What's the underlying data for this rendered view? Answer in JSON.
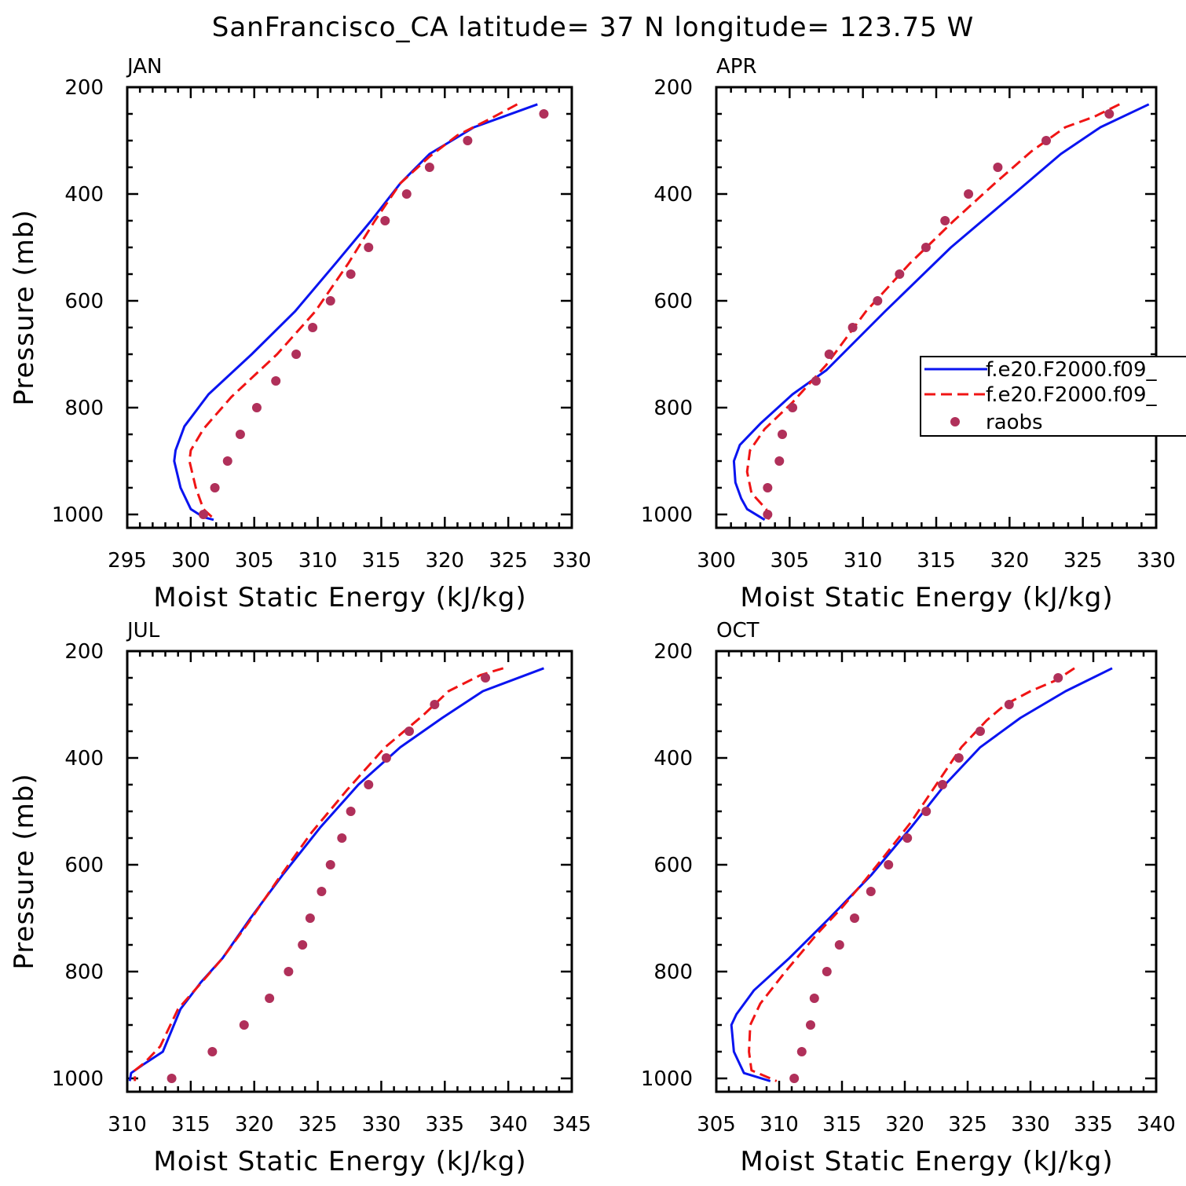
{
  "suptitle": "SanFrancisco_CA  latitude= 37 N longitude= 123.75 W",
  "colors": {
    "model_a": "#0a14f0",
    "model_b": "#f01414",
    "raobs": "#b0305a"
  },
  "legend": {
    "entries": [
      {
        "label": "f.e20.F2000.f09_",
        "style": "solid",
        "color": "#0a14f0"
      },
      {
        "label": "f.e20.F2000.f09_",
        "style": "dashed",
        "color": "#f01414"
      },
      {
        "label": "raobs",
        "style": "marker",
        "color": "#b0305a"
      }
    ],
    "panel": 1
  },
  "chart_data": [
    {
      "type": "line",
      "title": "JAN",
      "xlabel": "Moist Static Energy (kJ/kg)",
      "ylabel": "Pressure (mb)",
      "xlim": [
        295,
        330
      ],
      "ylim": [
        1025,
        200
      ],
      "xticks": [
        295,
        300,
        305,
        310,
        315,
        320,
        325,
        330
      ],
      "yticks": [
        200,
        400,
        600,
        800,
        1000
      ],
      "series": [
        {
          "style": "solid",
          "color": "#0a14f0",
          "x": [
            327.3,
            322.3,
            318.8,
            316.5,
            314.2,
            311.4,
            308.2,
            304.8,
            301.4,
            299.5,
            298.8,
            298.7,
            299.2,
            300.0,
            301.0,
            301.8
          ],
          "y": [
            232,
            275,
            325,
            380,
            450,
            530,
            620,
            700,
            775,
            835,
            880,
            900,
            950,
            990,
            1005,
            1010
          ]
        },
        {
          "style": "dashed",
          "color": "#f01414",
          "x": [
            325.7,
            323.5,
            321.0,
            318.8,
            316.5,
            314.5,
            312.4,
            309.8,
            306.8,
            303.2,
            301.0,
            300.0,
            299.9,
            300.4,
            301.0,
            301.9
          ],
          "y": [
            232,
            260,
            290,
            330,
            380,
            450,
            530,
            620,
            700,
            780,
            840,
            880,
            900,
            950,
            990,
            1010
          ]
        },
        {
          "style": "marker",
          "color": "#b0305a",
          "x": [
            327.8,
            321.8,
            318.8,
            317.0,
            315.3,
            314.0,
            312.6,
            311.0,
            309.6,
            308.3,
            306.7,
            305.2,
            303.9,
            302.9,
            301.9,
            301.0
          ],
          "y": [
            250,
            300,
            350,
            400,
            450,
            500,
            550,
            600,
            650,
            700,
            750,
            800,
            850,
            900,
            950,
            1000
          ]
        }
      ]
    },
    {
      "type": "line",
      "title": "APR",
      "xlabel": "Moist Static Energy (kJ/kg)",
      "ylabel": "",
      "xlim": [
        300,
        330
      ],
      "ylim": [
        1025,
        200
      ],
      "xticks": [
        300,
        305,
        310,
        315,
        320,
        325,
        330
      ],
      "yticks": [
        200,
        400,
        600,
        800,
        1000
      ],
      "series": [
        {
          "style": "solid",
          "color": "#0a14f0",
          "x": [
            329.5,
            326.2,
            323.5,
            320.3,
            316.0,
            311.5,
            307.5,
            305.2,
            303.0,
            301.6,
            301.2,
            301.3,
            301.7,
            302.1,
            303.3
          ],
          "y": [
            232,
            275,
            325,
            400,
            500,
            620,
            730,
            775,
            830,
            870,
            900,
            940,
            970,
            990,
            1010
          ]
        },
        {
          "style": "dashed",
          "color": "#f01414",
          "x": [
            327.5,
            325.8,
            323.8,
            321.5,
            319.0,
            316.2,
            313.2,
            310.2,
            307.5,
            305.2,
            303.3,
            302.3,
            302.1,
            302.4,
            303.4,
            303.6
          ],
          "y": [
            232,
            255,
            275,
            320,
            380,
            450,
            530,
            620,
            720,
            790,
            840,
            880,
            920,
            960,
            990,
            1010
          ]
        },
        {
          "style": "marker",
          "color": "#b0305a",
          "x": [
            326.8,
            322.5,
            319.2,
            317.2,
            315.6,
            314.3,
            312.5,
            311.0,
            309.3,
            307.7,
            306.8,
            305.2,
            304.5,
            304.3,
            303.5,
            303.5
          ],
          "y": [
            250,
            300,
            350,
            400,
            450,
            500,
            550,
            600,
            650,
            700,
            750,
            800,
            850,
            900,
            950,
            1000
          ]
        }
      ]
    },
    {
      "type": "line",
      "title": "JUL",
      "xlabel": "Moist Static Energy (kJ/kg)",
      "ylabel": "Pressure (mb)",
      "xlim": [
        310,
        345
      ],
      "ylim": [
        1025,
        200
      ],
      "xticks": [
        310,
        315,
        320,
        325,
        330,
        335,
        340,
        345
      ],
      "yticks": [
        200,
        400,
        600,
        800,
        1000
      ],
      "series": [
        {
          "style": "solid",
          "color": "#0a14f0",
          "x": [
            342.8,
            338.0,
            334.8,
            331.5,
            328.2,
            325.2,
            322.2,
            319.7,
            317.5,
            315.8,
            314.2,
            312.8,
            311.2,
            310.3,
            310.2
          ],
          "y": [
            232,
            275,
            325,
            380,
            450,
            530,
            620,
            700,
            775,
            820,
            870,
            950,
            975,
            990,
            1005
          ]
        },
        {
          "style": "dashed",
          "color": "#f01414",
          "x": [
            339.6,
            337.8,
            335.3,
            333.3,
            330.3,
            327.3,
            324.5,
            321.8,
            319.5,
            317.5,
            315.5,
            314.0,
            312.6,
            311.4,
            310.6,
            310.6
          ],
          "y": [
            232,
            245,
            275,
            320,
            380,
            460,
            540,
            630,
            710,
            775,
            830,
            870,
            940,
            970,
            985,
            1005
          ]
        },
        {
          "style": "marker",
          "color": "#b0305a",
          "x": [
            338.2,
            334.2,
            332.2,
            330.4,
            329.0,
            327.6,
            326.9,
            326.0,
            325.3,
            324.4,
            323.8,
            322.7,
            321.2,
            319.2,
            316.7,
            313.5
          ],
          "y": [
            250,
            300,
            350,
            400,
            450,
            500,
            550,
            600,
            650,
            700,
            750,
            800,
            850,
            900,
            950,
            1000
          ]
        }
      ]
    },
    {
      "type": "line",
      "title": "OCT",
      "xlabel": "Moist Static Energy (kJ/kg)",
      "ylabel": "",
      "xlim": [
        305,
        340
      ],
      "ylim": [
        1025,
        200
      ],
      "xticks": [
        305,
        310,
        315,
        320,
        325,
        330,
        335,
        340
      ],
      "yticks": [
        200,
        400,
        600,
        800,
        1000
      ],
      "series": [
        {
          "style": "solid",
          "color": "#0a14f0",
          "x": [
            336.5,
            332.8,
            329.2,
            326.0,
            323.2,
            320.5,
            317.3,
            314.0,
            310.8,
            308.0,
            306.6,
            306.2,
            306.4,
            306.8,
            307.2,
            309.3
          ],
          "y": [
            232,
            275,
            325,
            380,
            450,
            530,
            620,
            700,
            775,
            835,
            880,
            900,
            950,
            970,
            990,
            1005
          ]
        },
        {
          "style": "dashed",
          "color": "#f01414",
          "x": [
            333.5,
            332.0,
            330.0,
            328.0,
            326.5,
            324.5,
            322.5,
            320.5,
            318.5,
            316.8,
            315.0,
            313.0,
            310.5,
            308.5,
            307.7,
            307.6,
            307.8,
            309.8
          ],
          "y": [
            232,
            255,
            275,
            300,
            330,
            380,
            450,
            520,
            580,
            630,
            680,
            730,
            800,
            860,
            900,
            950,
            985,
            1005
          ]
        },
        {
          "style": "marker",
          "color": "#b0305a",
          "x": [
            332.2,
            328.3,
            326.0,
            324.3,
            323.0,
            321.7,
            320.2,
            318.7,
            317.3,
            316.0,
            314.8,
            313.8,
            312.8,
            312.5,
            311.8,
            311.2
          ],
          "y": [
            250,
            300,
            350,
            400,
            450,
            500,
            550,
            600,
            650,
            700,
            750,
            800,
            850,
            900,
            950,
            1000
          ]
        }
      ]
    }
  ]
}
